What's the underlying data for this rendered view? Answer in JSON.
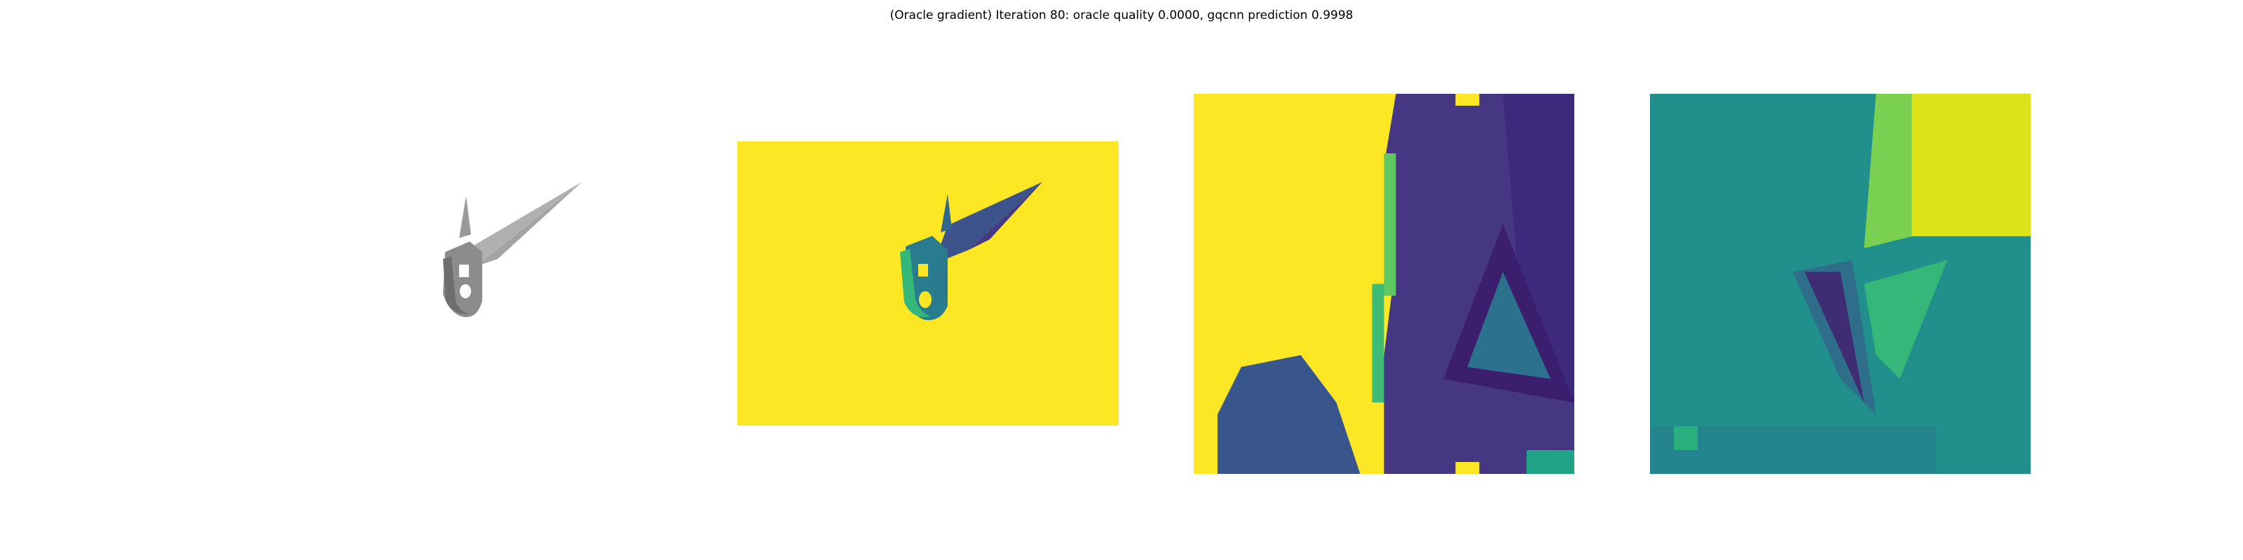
{
  "figure": {
    "title": "(Oracle gradient) Iteration 80: oracle quality 0.0000, gqcnn prediction 0.9998"
  },
  "colors": {
    "background": "#ffffff",
    "viridis_yellow": "#fde725",
    "viridis_dark": "#440154",
    "viridis_navy": "#3b528b",
    "viridis_teal": "#21908c",
    "viridis_green": "#5dc863",
    "render_gray": "#8f8f8f",
    "render_light_gray": "#b5b5b5"
  },
  "panels": [
    {
      "id": "rendered-object",
      "colormap": "gray"
    },
    {
      "id": "depth-image",
      "colormap": "viridis"
    },
    {
      "id": "depth-crop",
      "colormap": "viridis"
    },
    {
      "id": "oracle-gradient",
      "colormap": "viridis"
    }
  ]
}
